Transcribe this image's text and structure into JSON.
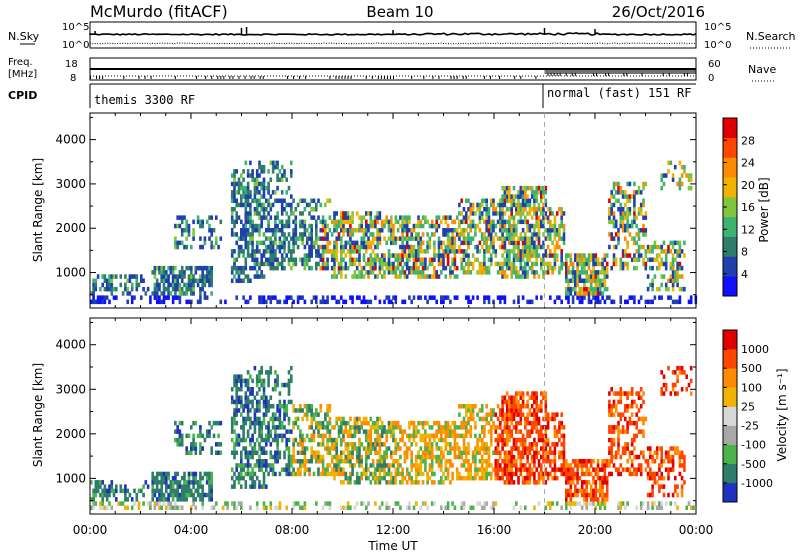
{
  "header": {
    "station": "McMurdo (fitACF)",
    "beam": "Beam 10",
    "date": "26/Oct/2016"
  },
  "status_panel": {
    "left_label": "N.Sky",
    "right_label": "N.Search",
    "left_ticks": [
      "10^5",
      "10^0"
    ],
    "right_ticks": [
      "10^5",
      "10^0"
    ]
  },
  "freq_panel": {
    "left_label_1": "Freq.",
    "left_label_2": "[MHz]",
    "right_label": "Nave",
    "left_ticks": [
      "18",
      "8"
    ],
    "right_ticks": [
      "60",
      "0"
    ]
  },
  "cpid_panel": {
    "label": "CPID",
    "modes": [
      {
        "start_hour": 0,
        "text": "themis 3300 RF"
      },
      {
        "start_hour": 18,
        "text": "normal (fast) 151 RF"
      }
    ]
  },
  "colors": {
    "power": [
      "#1010ff",
      "#2040b0",
      "#2e7d6a",
      "#3cb371",
      "#7fc63e",
      "#f0b400",
      "#ff8c00",
      "#ff4500",
      "#e00000"
    ],
    "velocity": [
      "#2030c0",
      "#2e7d6a",
      "#4bb34b",
      "#a8a8a8",
      "#d7d7d7",
      "#f0b400",
      "#ff8c00",
      "#ff4500",
      "#e00000"
    ]
  },
  "chart_data": [
    {
      "type": "heatmap",
      "name": "power",
      "ylabel": "Slant Range [km]",
      "ylim": [
        200,
        4600
      ],
      "y_ticks": [
        1000,
        2000,
        3000,
        4000
      ],
      "xlim": [
        0,
        24
      ],
      "x_ticks": [
        0,
        4,
        8,
        12,
        16,
        20,
        24
      ],
      "colorbar": {
        "label": "Power [dB]",
        "range": [
          0,
          32
        ],
        "ticks": [
          "4",
          "8",
          "12",
          "16",
          "20",
          "24",
          "28"
        ],
        "tick_values": [
          4,
          8,
          12,
          16,
          20,
          24,
          28
        ]
      },
      "mode_change_hour": 18
    },
    {
      "type": "heatmap",
      "name": "velocity",
      "ylabel": "Slant Range [km]",
      "ylim": [
        200,
        4600
      ],
      "y_ticks": [
        1000,
        2000,
        3000,
        4000
      ],
      "xlim": [
        0,
        24
      ],
      "x_ticks": [
        0,
        4,
        8,
        12,
        16,
        20,
        24
      ],
      "x_tick_labels": [
        "00:00",
        "04:00",
        "08:00",
        "12:00",
        "16:00",
        "20:00",
        "00:00"
      ],
      "xlabel": "Time UT",
      "colorbar": {
        "label": "Velocity [m s⁻¹]",
        "ticks": [
          "1000",
          "500",
          "100",
          "25",
          "-25",
          "-100",
          "-500",
          "-1000"
        ]
      },
      "mode_change_hour": 18
    }
  ]
}
